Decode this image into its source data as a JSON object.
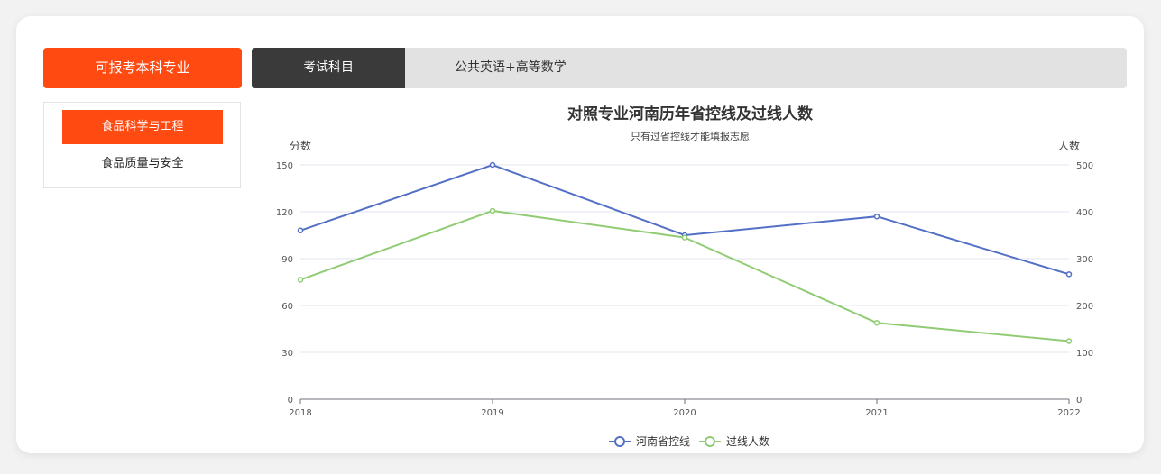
{
  "left_panel": {
    "header": "可报考本科专业",
    "majors": [
      {
        "label": "食品科学与工程",
        "active": true
      },
      {
        "label": "食品质量与安全",
        "active": false
      }
    ]
  },
  "subject": {
    "label": "考试科目",
    "value": "公共英语+高等数学"
  },
  "colors": {
    "accent": "#ff4a12",
    "line_control": "#5470c6",
    "line_passed": "#91cc75"
  },
  "chart_data": {
    "type": "line",
    "title": "对照专业河南历年省控线及过线人数",
    "subtitle": "只有过省控线才能填报志愿",
    "ylabel_left": "分数",
    "ylabel_right": "人数",
    "x": [
      "2018",
      "2019",
      "2020",
      "2021",
      "2022"
    ],
    "y_left": {
      "min": 0,
      "max": 150,
      "ticks": [
        0,
        30,
        60,
        90,
        120,
        150
      ]
    },
    "y_right": {
      "min": 0,
      "max": 500,
      "ticks": [
        0,
        100,
        200,
        300,
        400,
        500
      ]
    },
    "series": [
      {
        "name": "河南省控线",
        "axis": "left",
        "values": [
          108,
          150,
          105,
          117,
          80
        ]
      },
      {
        "name": "过线人数",
        "axis": "right",
        "values": [
          255,
          402,
          345,
          163,
          124
        ]
      }
    ],
    "legend_position": "bottom-center",
    "grid": true
  }
}
